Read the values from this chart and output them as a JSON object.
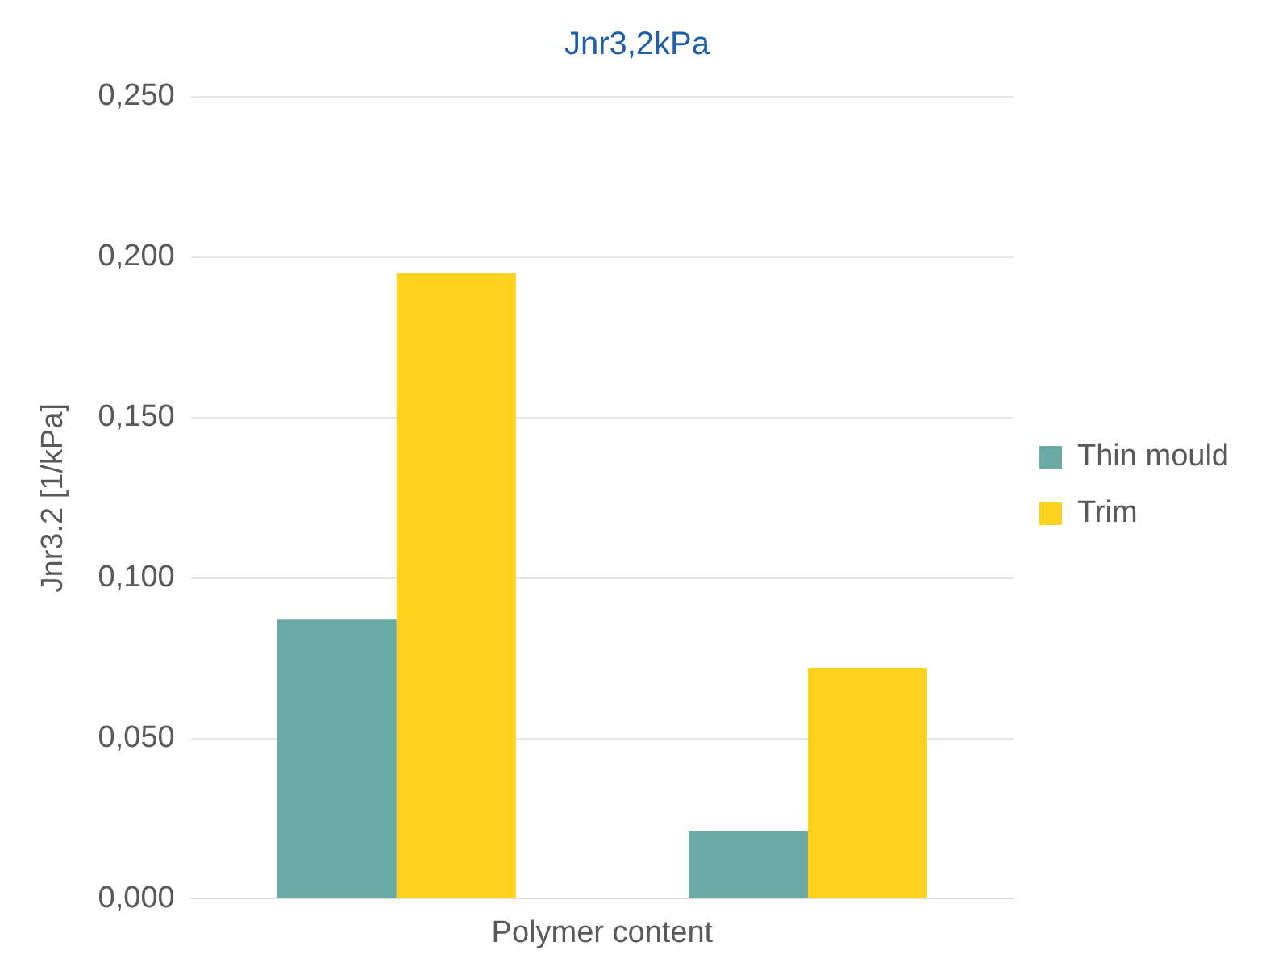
{
  "chart_data": {
    "type": "bar",
    "title": "Jnr3,2kPa",
    "xlabel": "Polymer content",
    "ylabel": "Jnr3.2 [1/kPa]",
    "categories": [
      null,
      null
    ],
    "series": [
      {
        "name": "Thin mould",
        "color": "#6aaba4",
        "values": [
          0.087,
          0.021
        ]
      },
      {
        "name": "Trim",
        "color": "#fcd21c",
        "values": [
          0.195,
          0.072
        ]
      }
    ],
    "ylim": [
      0,
      0.25
    ],
    "yticks": [
      {
        "value": 0,
        "label": "0,000"
      },
      {
        "value": 0.05,
        "label": "0,050"
      },
      {
        "value": 0.1,
        "label": "0,100"
      },
      {
        "value": 0.15,
        "label": "0,150"
      },
      {
        "value": 0.2,
        "label": "0,200"
      },
      {
        "value": 0.25,
        "label": "0,250"
      }
    ],
    "grid": "y",
    "legend": "right"
  }
}
